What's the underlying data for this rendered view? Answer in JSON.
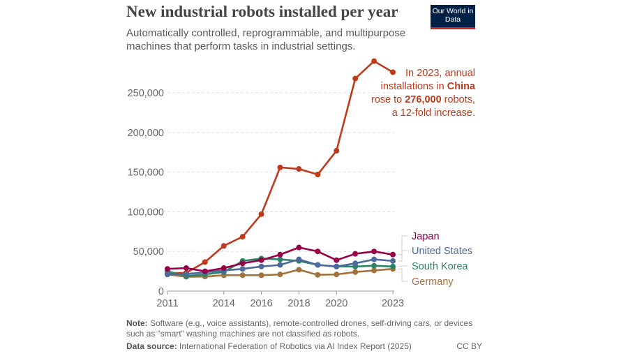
{
  "header": {
    "title": "New industrial robots installed per year",
    "subtitle": "Automatically controlled, reprogrammable, and multipurpose machines that perform tasks in industrial settings.",
    "logo": "Our World in Data"
  },
  "annotation": {
    "line1": "In 2023, annual",
    "line2a": "installations in ",
    "line2b": "China",
    "line3a": "rose to ",
    "line3b": "276,000",
    "line3c": " robots,",
    "line4": "a 12-fold increase."
  },
  "footer": {
    "note_label": "Note:",
    "note": " Software (e.g., voice assistants), remote-controlled drones, self-driving cars, or devices such as “smart” washing machines are not classified as robots.",
    "source_label": "Data source:",
    "source": " International Federation of Robotics via AI Index Report (2025)",
    "license": "CC BY"
  },
  "chart_data": {
    "type": "line",
    "x": [
      2011,
      2012,
      2013,
      2014,
      2015,
      2016,
      2017,
      2018,
      2019,
      2020,
      2021,
      2022,
      2023
    ],
    "xticks": [
      "2011",
      "2014",
      "2016",
      "2018",
      "2020",
      "2023"
    ],
    "yticks": [
      "0",
      "50,000",
      "100,000",
      "150,000",
      "200,000",
      "250,000"
    ],
    "ylim": [
      0,
      290000
    ],
    "grid": "horizontal dashed",
    "series": [
      {
        "name": "China",
        "color": "#be3a1b",
        "labeled": false,
        "values": [
          22600,
          23000,
          36600,
          57000,
          68600,
          97000,
          156000,
          154000,
          147000,
          177000,
          268000,
          290000,
          276000
        ]
      },
      {
        "name": "Germany",
        "color": "#a2713c",
        "labeled": true,
        "values": [
          21000,
          18000,
          18300,
          20000,
          20000,
          20000,
          21000,
          27000,
          20500,
          21000,
          24000,
          26000,
          28000
        ]
      },
      {
        "name": "South Korea",
        "color": "#2c8465",
        "labeled": true,
        "values": [
          25000,
          19000,
          21000,
          24000,
          38000,
          41000,
          40000,
          38000,
          33000,
          31000,
          31000,
          32000,
          31000
        ]
      },
      {
        "name": "United States",
        "color": "#4c6a9c",
        "labeled": true,
        "values": [
          21000,
          21500,
          23700,
          26000,
          28000,
          31000,
          33000,
          40000,
          33000,
          31000,
          35000,
          40000,
          38000
        ]
      },
      {
        "name": "Japan",
        "color": "#970046",
        "labeled": true,
        "values": [
          28000,
          29000,
          25000,
          29000,
          35000,
          39000,
          46000,
          55000,
          50000,
          39000,
          47000,
          50000,
          46000
        ]
      }
    ]
  }
}
